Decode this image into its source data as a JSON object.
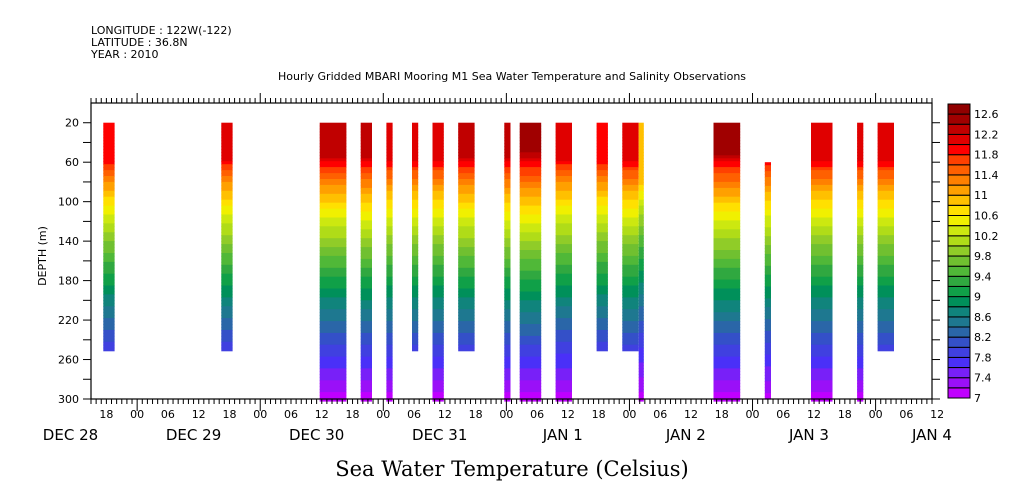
{
  "header": {
    "lines": [
      "LONGITUDE : 122W(-122)",
      "LATITUDE : 36.8N",
      "YEAR : 2010"
    ]
  },
  "chart_data": {
    "type": "heatmap",
    "title": "Hourly Gridded MBARI Mooring M1 Sea Water Temperature and Salinity Observations",
    "xlabel": "Sea Water Temperature (Celsius)",
    "ylabel": "DEPTH (m)",
    "x_axis": {
      "units": "hours since Dec 29 00:00",
      "range": [
        -9,
        155
      ],
      "hour_ticks": [
        "18",
        "00",
        "06",
        "12",
        "18",
        "00",
        "06",
        "12",
        "18",
        "00",
        "06",
        "12",
        "18",
        "00",
        "06",
        "12",
        "18",
        "00",
        "06",
        "12",
        "18",
        "00",
        "06",
        "12",
        "18",
        "00",
        "06",
        "12"
      ],
      "hour_tick_values": [
        -6,
        0,
        6,
        12,
        18,
        24,
        30,
        36,
        42,
        48,
        54,
        60,
        66,
        72,
        78,
        84,
        90,
        96,
        102,
        108,
        114,
        120,
        126,
        132,
        138,
        144,
        150,
        156
      ],
      "day_labels": [
        {
          "label": "DEC 28",
          "hour": -13
        },
        {
          "label": "DEC 29",
          "hour": 11
        },
        {
          "label": "DEC 30",
          "hour": 35
        },
        {
          "label": "DEC 31",
          "hour": 59
        },
        {
          "label": "JAN  1",
          "hour": 83
        },
        {
          "label": "JAN  2",
          "hour": 107
        },
        {
          "label": "JAN  3",
          "hour": 131
        },
        {
          "label": "JAN  4",
          "hour": 155
        }
      ]
    },
    "y_axis": {
      "range": [
        0,
        300
      ],
      "inverted": true,
      "ticks": [
        20,
        60,
        100,
        140,
        180,
        220,
        260,
        300
      ]
    },
    "colorbar": {
      "levels": [
        7,
        7.2,
        7.4,
        7.6,
        7.8,
        8,
        8.2,
        8.4,
        8.6,
        8.8,
        9,
        9.2,
        9.4,
        9.6,
        9.8,
        10,
        10.2,
        10.4,
        10.6,
        10.8,
        11,
        11.2,
        11.4,
        11.6,
        11.8,
        12,
        12.2,
        12.4,
        12.6,
        12.8
      ],
      "labels": [
        "7",
        "7.4",
        "7.8",
        "8.2",
        "8.6",
        "9",
        "9.4",
        "9.8",
        "10.2",
        "10.6",
        "11",
        "11.4",
        "11.8",
        "12.2",
        "12.6"
      ],
      "colors": [
        "#c000ff",
        "#9a10f8",
        "#7820f8",
        "#4a30f8",
        "#4040e0",
        "#3450c8",
        "#2a66a8",
        "#1e7890",
        "#10847c",
        "#00905a",
        "#10a048",
        "#30a840",
        "#50b838",
        "#70c030",
        "#90cc28",
        "#b0dc18",
        "#cce810",
        "#f0f000",
        "#ffe000",
        "#ffc000",
        "#ffa000",
        "#ff8000",
        "#ff6000",
        "#ff4000",
        "#ff0000",
        "#e00000",
        "#c00000",
        "#a00000",
        "#900000"
      ]
    },
    "profiles": [
      {
        "start_hour": -6.6,
        "end_hour": -4.4,
        "max_depth": 250,
        "surface_temp": 12.0
      },
      {
        "start_hour": 16.4,
        "end_hour": 18.6,
        "max_depth": 250,
        "surface_temp": 12.1
      },
      {
        "start_hour": 35.6,
        "end_hour": 40.8,
        "max_depth": 300,
        "surface_temp": 12.3
      },
      {
        "start_hour": 43.6,
        "end_hour": 45.8,
        "max_depth": 300,
        "surface_temp": 12.4
      },
      {
        "start_hour": 48.6,
        "end_hour": 49.8,
        "max_depth": 300,
        "surface_temp": 12.2
      },
      {
        "start_hour": 53.6,
        "end_hour": 54.8,
        "max_depth": 250,
        "surface_temp": 12.2
      },
      {
        "start_hour": 57.6,
        "end_hour": 59.8,
        "max_depth": 300,
        "surface_temp": 12.2
      },
      {
        "start_hour": 62.6,
        "end_hour": 65.8,
        "max_depth": 250,
        "surface_temp": 12.3
      },
      {
        "start_hour": 71.6,
        "end_hour": 72.8,
        "max_depth": 300,
        "surface_temp": 12.4
      },
      {
        "start_hour": 74.6,
        "end_hour": 78.8,
        "max_depth": 300,
        "surface_temp": 12.6
      },
      {
        "start_hour": 81.6,
        "end_hour": 84.8,
        "max_depth": 300,
        "surface_temp": 12.1
      },
      {
        "start_hour": 89.6,
        "end_hour": 91.8,
        "max_depth": 250,
        "surface_temp": 12.0
      },
      {
        "start_hour": 94.6,
        "end_hour": 97.8,
        "max_depth": 250,
        "surface_temp": 12.2
      },
      {
        "start_hour": 97.8,
        "end_hour": 98.8,
        "max_depth": 300,
        "surface_temp": 11.0
      },
      {
        "start_hour": 112.4,
        "end_hour": 117.6,
        "max_depth": 300,
        "surface_temp": 12.5
      },
      {
        "start_hour": 122.4,
        "end_hour": 123.6,
        "max_depth": 300,
        "min_depth": 60,
        "surface_temp": 12.2
      },
      {
        "start_hour": 131.4,
        "end_hour": 135.6,
        "max_depth": 300,
        "surface_temp": 12.2
      },
      {
        "start_hour": 140.4,
        "end_hour": 141.6,
        "max_depth": 300,
        "surface_temp": 12.2
      },
      {
        "start_hour": 144.4,
        "end_hour": 147.6,
        "max_depth": 250,
        "surface_temp": 12.2
      }
    ]
  }
}
